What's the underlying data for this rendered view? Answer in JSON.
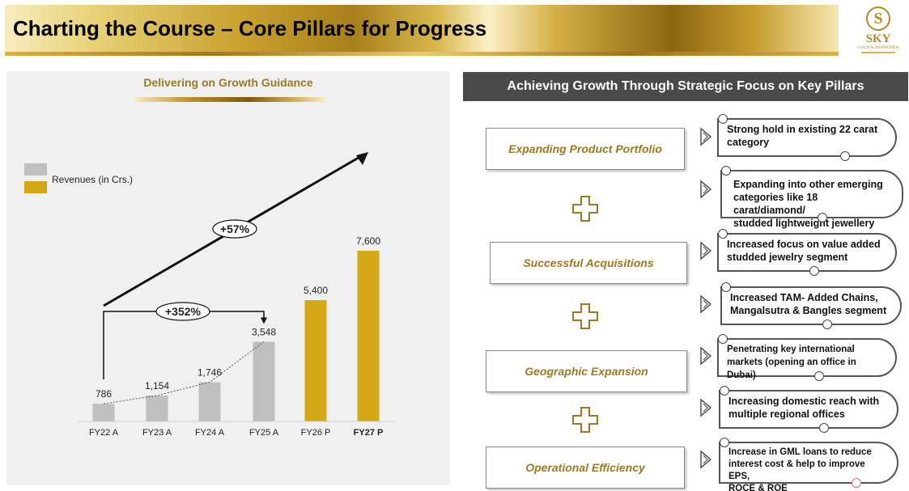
{
  "header": {
    "title": "Charting the Course – Core Pillars for Progress",
    "logo_letter": "S",
    "logo_name": "SKY",
    "logo_sub": "GOLD & DIAMONDS"
  },
  "left": {
    "title": "Delivering on Growth Guidance",
    "legend": "Revenues (in Crs.)",
    "growth_overall": "+57%",
    "growth_past": "+352%"
  },
  "chart_data": {
    "type": "bar",
    "title": "Delivering on Growth Guidance",
    "categories": [
      "FY22 A",
      "FY23 A",
      "FY24 A",
      "FY25 A",
      "FY26 P",
      "FY27 P"
    ],
    "values": [
      786,
      1154,
      1746,
      3548,
      5400,
      7600
    ],
    "value_labels": [
      "786",
      "1,154",
      "1,746",
      "3,548",
      "5,400",
      "7,600"
    ],
    "series": [
      {
        "name": "Revenues (in Crs.)",
        "values": [
          786,
          1154,
          1746,
          3548,
          5400,
          7600
        ]
      }
    ],
    "colors": {
      "actual": "#bfbfbf",
      "projected": "#d4a716"
    },
    "bold_category": "FY27 P",
    "ylim": [
      0,
      7600
    ],
    "legend_position": "top-left",
    "grid": false,
    "annotations": [
      "+57%",
      "+352%"
    ]
  },
  "right": {
    "header": "Achieving Growth Through Strategic Focus on Key Pillars",
    "pillars": [
      {
        "label": "Expanding Product Portfolio"
      },
      {
        "label": "Successful Acquisitions"
      },
      {
        "label": "Geographic Expansion"
      },
      {
        "label": "Operational Efficiency"
      }
    ],
    "callouts": [
      {
        "lines": [
          "Strong hold in existing 22 carat",
          "category"
        ]
      },
      {
        "lines": [
          "Expanding into other emerging",
          "categories like 18 carat/diamond/",
          "studded lightweight jewellery"
        ]
      },
      {
        "lines": [
          "Increased focus on value added",
          "studded jewelry segment"
        ]
      },
      {
        "lines": [
          "Increased TAM-  Added Chains,",
          "Mangalsutra & Bangles segment"
        ]
      },
      {
        "lines": [
          "Penetrating key international",
          "markets (opening an office in Dubai)"
        ]
      },
      {
        "lines": [
          "Increasing domestic reach with",
          "multiple regional offices"
        ]
      },
      {
        "lines": [
          "Increase in GML loans to reduce",
          "interest cost & help to improve EPS,",
          "ROCE & ROE"
        ]
      }
    ]
  },
  "colors": {
    "gold": "#9a7a22",
    "dark_header": "#4a4a4a",
    "bar_gold": "#d4a716",
    "bar_grey": "#bfbfbf"
  }
}
